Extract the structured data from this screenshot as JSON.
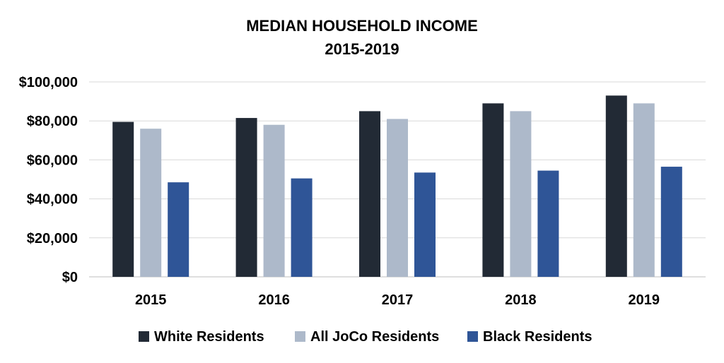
{
  "chart_data": {
    "type": "bar",
    "title": "MEDIAN HOUSEHOLD INCOME",
    "subtitle": "2015-2019",
    "categories": [
      "2015",
      "2016",
      "2017",
      "2018",
      "2019"
    ],
    "series": [
      {
        "name": "White Residents",
        "color": "#222a35",
        "values": [
          79500,
          81500,
          85000,
          89000,
          93000
        ]
      },
      {
        "name": "All JoCo Residents",
        "color": "#adb9ca",
        "values": [
          76000,
          78000,
          81000,
          85000,
          89000
        ]
      },
      {
        "name": "Black Residents",
        "color": "#2f5597",
        "values": [
          48500,
          50500,
          53500,
          54500,
          56500
        ]
      }
    ],
    "ylim": [
      0,
      100000
    ],
    "yticks": [
      0,
      20000,
      40000,
      60000,
      80000,
      100000
    ],
    "ytick_labels": [
      "$0",
      "$20,000",
      "$40,000",
      "$60,000",
      "$80,000",
      "$100,000"
    ],
    "xlabel": "",
    "ylabel": "",
    "grid": true,
    "legend_position": "bottom"
  }
}
